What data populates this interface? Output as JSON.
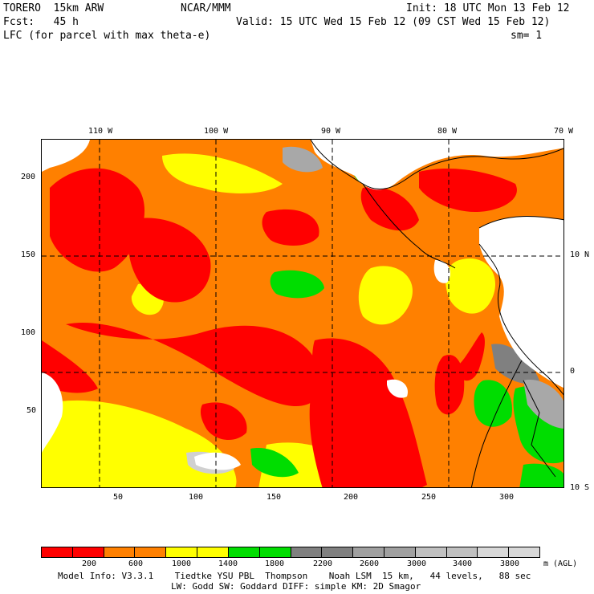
{
  "header": {
    "model": "TORERO  15km ARW",
    "org": "NCAR/MMM",
    "init": "Init: 18 UTC Mon 13 Feb 12",
    "fcst": "Fcst:   45 h",
    "valid": "Valid: 15 UTC Wed 15 Feb 12 (09 CST Wed 15 Feb 12)",
    "field": "LFC (for parcel with max theta-e)",
    "smoothing": "sm= 1"
  },
  "axes": {
    "top_lon_labels": [
      "110 W",
      "100 W",
      "90 W",
      "80 W",
      "70 W"
    ],
    "right_lat_labels": [
      "10 N",
      "0",
      "10 S"
    ],
    "left_grid_labels": [
      "200",
      "150",
      "100",
      "50"
    ],
    "bottom_grid_labels": [
      "50",
      "100",
      "150",
      "200",
      "250",
      "300"
    ]
  },
  "legend": {
    "units": "m (AGL)",
    "thresholds": [
      "200",
      "600",
      "1000",
      "1400",
      "1800",
      "2200",
      "2600",
      "3000",
      "3400",
      "3800"
    ],
    "colors": [
      "#ff0000",
      "#ff0000",
      "#ff8000",
      "#ff8000",
      "#ffff00",
      "#ffff00",
      "#00dd00",
      "#00dd00",
      "#808080",
      "#808080",
      "#a0a0a0",
      "#a0a0a0",
      "#c0c0c0",
      "#c0c0c0",
      "#d8d8d8",
      "#d8d8d8"
    ]
  },
  "footer": {
    "line1": "Model Info: V3.3.1    Tiedtke YSU PBL  Thompson    Noah LSM  15 km,   44 levels,   88 sec",
    "line2": "LW: Godd SW: Goddard DIFF: simple KM: 2D Smagor"
  },
  "map_colors": {
    "red": "#ff0000",
    "orange": "#ff8000",
    "yellow": "#ffff00",
    "green": "#00dd00",
    "gray_dark": "#808080",
    "gray_mid": "#a8a8a8",
    "gray_light": "#d0d0d0",
    "land_white": "#ffffff"
  }
}
